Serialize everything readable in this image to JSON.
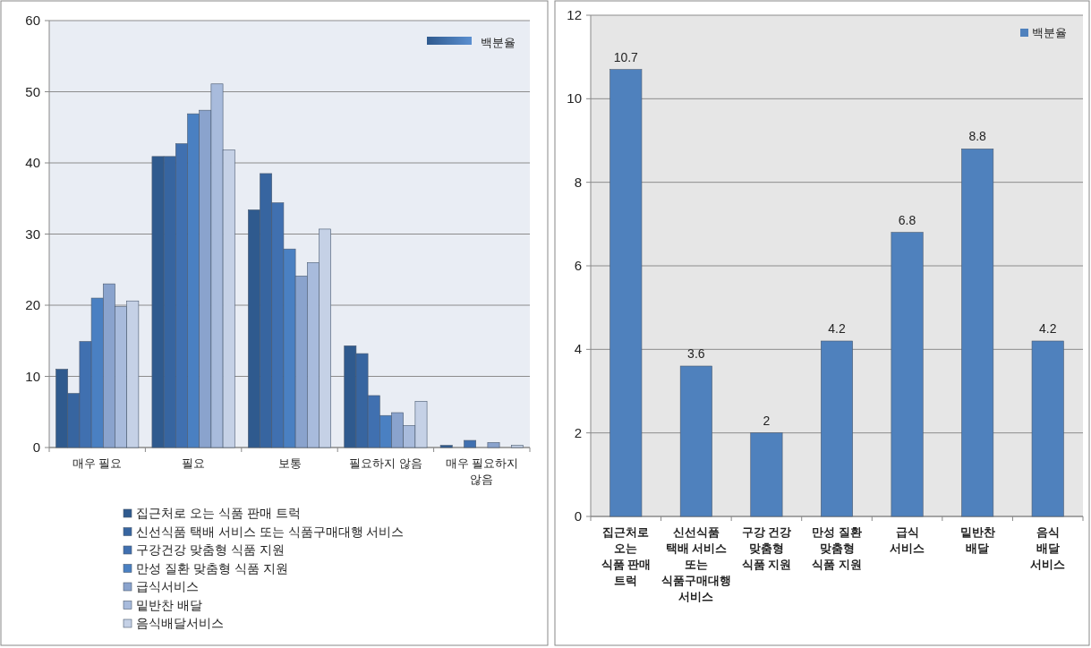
{
  "chart_data": [
    {
      "type": "bar",
      "categories": [
        "매우 필요",
        "필요",
        "보통",
        "필요하지 않음",
        "매우 필요하지\n않음"
      ],
      "series": [
        {
          "name": "집근처로 오는 식품 판매 트럭",
          "color": "#2f5a8e",
          "values": [
            11.0,
            40.9,
            33.4,
            14.3,
            0.3
          ]
        },
        {
          "name": "신선식품 택배 서비스 또는 식품구매대행 서비스",
          "color": "#3765a0",
          "values": [
            7.6,
            40.9,
            38.5,
            13.2,
            0
          ]
        },
        {
          "name": "구강건강 맞춤형 식품 지원",
          "color": "#4070b0",
          "values": [
            14.9,
            42.7,
            34.4,
            7.3,
            1.0
          ]
        },
        {
          "name": "만성 질환 맞춤형 식품 지원",
          "color": "#4a80c2",
          "values": [
            21.0,
            46.9,
            27.9,
            4.5,
            0
          ]
        },
        {
          "name": "급식서비스",
          "color": "#8aa3cd",
          "values": [
            23.0,
            47.4,
            24.1,
            4.9,
            0.7
          ]
        },
        {
          "name": "밑반찬 배달",
          "color": "#a8bbdc",
          "values": [
            19.8,
            51.1,
            26.0,
            3.1,
            0
          ]
        },
        {
          "name": "음식배달서비스",
          "color": "#c5d1e6",
          "values": [
            20.6,
            41.8,
            30.7,
            6.5,
            0.3
          ]
        }
      ],
      "ylim": [
        0,
        60
      ],
      "yticks": [
        0,
        10,
        20,
        30,
        40,
        50,
        60
      ],
      "grid": "y",
      "legend": "bottom",
      "annotations": [
        "백분율"
      ]
    },
    {
      "type": "bar",
      "categories": [
        "집근처로\n오는\n식품 판매\n트럭",
        "신선식품\n택배 서비스\n또는\n식품구매대행\n서비스",
        "구강 건강\n맞춤형\n식품 지원",
        "만성 질환\n맞춤형\n식품 지원",
        "급식\n서비스",
        "밑반찬\n배달",
        "음식\n배달\n서비스"
      ],
      "series": [
        {
          "name": "백분율",
          "color": "#4f81bd",
          "values": [
            10.7,
            3.6,
            2,
            4.2,
            6.8,
            8.8,
            4.2
          ]
        }
      ],
      "ylim": [
        0,
        12
      ],
      "yticks": [
        0,
        2,
        4,
        6,
        8,
        10,
        12
      ],
      "grid": "y",
      "legend": "top right",
      "data_labels": true
    }
  ]
}
